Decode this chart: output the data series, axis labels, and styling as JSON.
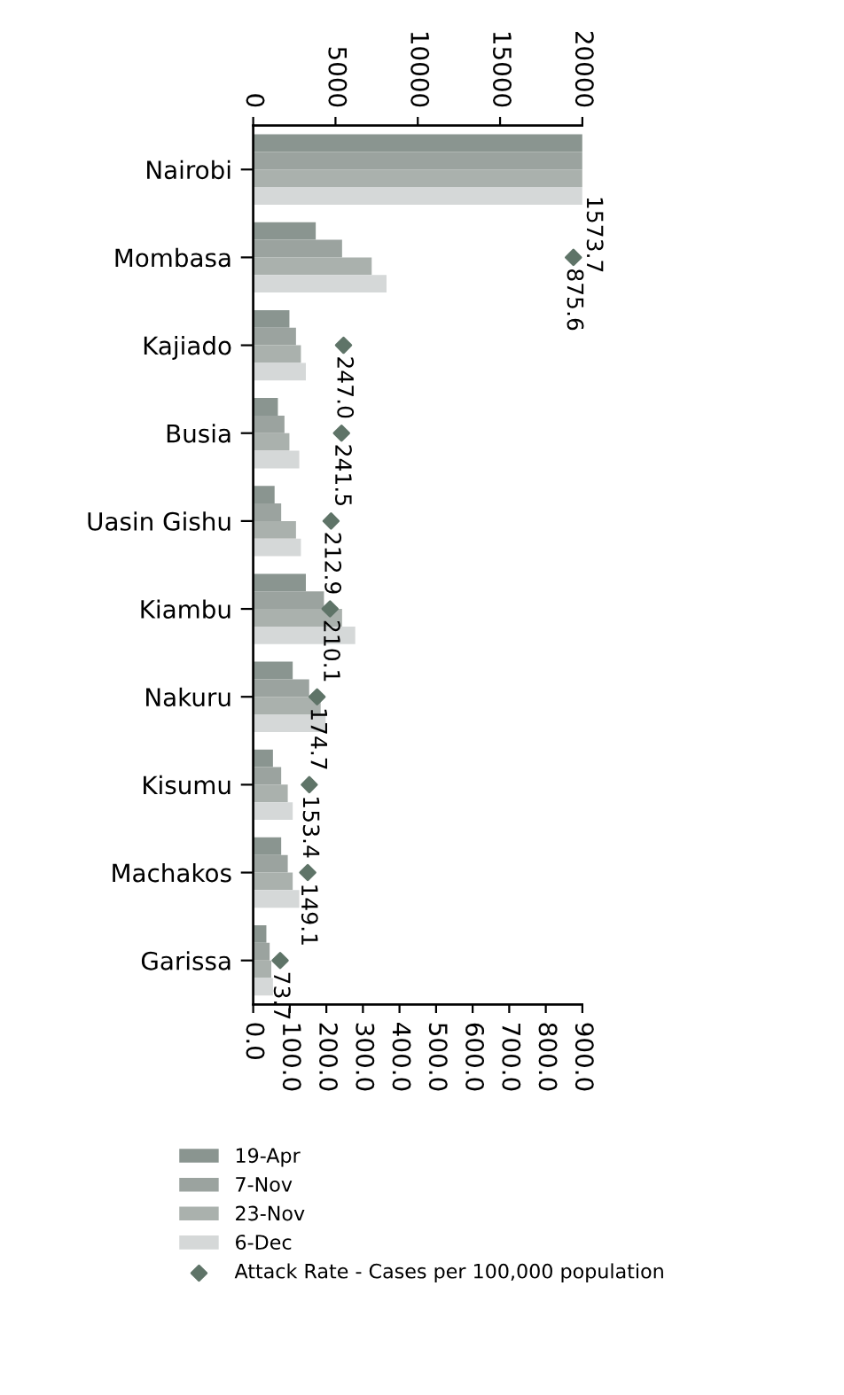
{
  "chart_data": {
    "type": "bar",
    "orientation": "horizontal",
    "categories": [
      "Nairobi",
      "Mombasa",
      "Kajiado",
      "Busia",
      "Uasin Gishu",
      "Kiambu",
      "Nakuru",
      "Kisumu",
      "Machakos",
      "Garissa"
    ],
    "series": [
      {
        "name": "19-Apr",
        "color": "#8a9590",
        "values": [
          20000,
          3800,
          2200,
          1500,
          1300,
          3200,
          2400,
          1200,
          1700,
          800
        ]
      },
      {
        "name": "7-Nov",
        "color": "#9ba39f",
        "values": [
          20000,
          5400,
          2600,
          1900,
          1700,
          4300,
          3400,
          1700,
          2100,
          1000
        ]
      },
      {
        "name": "23-Nov",
        "color": "#aab1ad",
        "values": [
          20000,
          7200,
          2900,
          2200,
          2600,
          5400,
          4100,
          2100,
          2400,
          1100
        ]
      },
      {
        "name": "6-Dec",
        "color": "#d5d8d8",
        "values": [
          20000,
          8100,
          3200,
          2800,
          2900,
          6200,
          4400,
          2400,
          2800,
          1200
        ]
      },
      {
        "name": "Attack Rate - Cases per 100,000 population",
        "type": "scatter",
        "axis": "x2",
        "marker": "diamond",
        "color": "#5f7468",
        "values": [
          null,
          875.6,
          247.0,
          241.5,
          212.9,
          210.1,
          174.7,
          153.4,
          149.1,
          73.7
        ],
        "value_labels": [
          null,
          "875.6",
          "247.0",
          "241.5",
          "212.9",
          "210.1",
          "174.7",
          "153.4",
          "149.1",
          "73.7"
        ]
      }
    ],
    "xlim": [
      0,
      20000
    ],
    "xticks": [
      0,
      5000,
      10000,
      15000,
      20000
    ],
    "x2lim": [
      0,
      900
    ],
    "x2ticks": [
      {
        "value": 0,
        "label": "0.0"
      },
      {
        "value": 100,
        "label": "100.0"
      },
      {
        "value": 200,
        "label": "200.0"
      },
      {
        "value": 300,
        "label": "300.0"
      },
      {
        "value": 400,
        "label": "400.0"
      },
      {
        "value": 500,
        "label": "500.0"
      },
      {
        "value": 600,
        "label": "600.0"
      },
      {
        "value": 700,
        "label": "700.0"
      },
      {
        "value": 800,
        "label": "800.0"
      },
      {
        "value": 900,
        "label": "900.0"
      }
    ],
    "annotations": [
      "1573.7"
    ],
    "legend": "bottom",
    "grid": false
  }
}
